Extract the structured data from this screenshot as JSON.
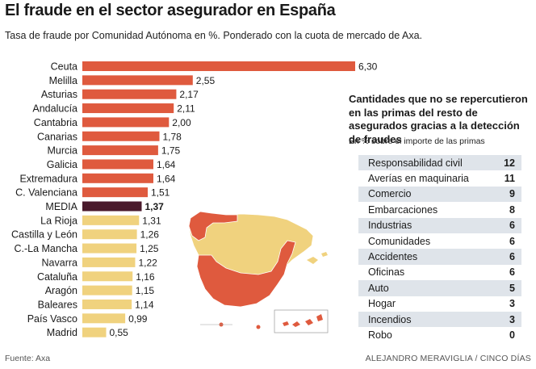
{
  "header": {
    "title": "El fraude en el sector asegurador en España",
    "subtitle": "Tasa de fraude por Comunidad Autónoma en %. Ponderado con la cuota de mercado de Axa."
  },
  "colors": {
    "above_average": "#df5a3e",
    "average": "#4a1a2c",
    "below_average": "#f0d27e",
    "table_stripe": "#dfe4ea"
  },
  "chart_data": {
    "type": "bar",
    "orientation": "horizontal",
    "categories": [
      "Ceuta",
      "Melilla",
      "Asturias",
      "Andalucía",
      "Cantabria",
      "Canarias",
      "Murcia",
      "Galicia",
      "Extremadura",
      "C. Valenciana",
      "MEDIA",
      "La Rioja",
      "Castilla y León",
      "C.-La Mancha",
      "Navarra",
      "Cataluña",
      "Aragón",
      "Baleares",
      "País Vasco",
      "Madrid"
    ],
    "values": [
      6.3,
      2.55,
      2.17,
      2.11,
      2.0,
      1.78,
      1.75,
      1.64,
      1.64,
      1.51,
      1.37,
      1.31,
      1.26,
      1.25,
      1.22,
      1.16,
      1.15,
      1.14,
      0.99,
      0.55
    ],
    "value_labels": [
      "6,30",
      "2,55",
      "2,17",
      "2,11",
      "2,00",
      "1,78",
      "1,75",
      "1,64",
      "1,64",
      "1,51",
      "1,37",
      "1,31",
      "1,26",
      "1,25",
      "1,22",
      "1,16",
      "1,15",
      "1,14",
      "0,99",
      "0,55"
    ],
    "highlight": "MEDIA",
    "xlim": [
      0,
      6.3
    ],
    "grid": false
  },
  "table": {
    "title": "Cantidades que no se repercutieron en las primas del resto de asegurados gracias a la detección de fraudes",
    "subtitle": "En % sobre el importe de las primas",
    "rows": [
      {
        "label": "Responsabilidad civil",
        "value": "12"
      },
      {
        "label": "Averías en maquinaria",
        "value": "11"
      },
      {
        "label": "Comercio",
        "value": "9"
      },
      {
        "label": "Embarcaciones",
        "value": "8"
      },
      {
        "label": "Industrias",
        "value": "6"
      },
      {
        "label": "Comunidades",
        "value": "6"
      },
      {
        "label": "Accidentes",
        "value": "6"
      },
      {
        "label": "Oficinas",
        "value": "6"
      },
      {
        "label": "Auto",
        "value": "5"
      },
      {
        "label": "Hogar",
        "value": "3"
      },
      {
        "label": "Incendios",
        "value": "3"
      },
      {
        "label": "Robo",
        "value": "0"
      }
    ]
  },
  "footer": {
    "source": "Fuente: Axa",
    "credit": "ALEJANDRO MERAVIGLIA / CINCO DÍAS"
  }
}
